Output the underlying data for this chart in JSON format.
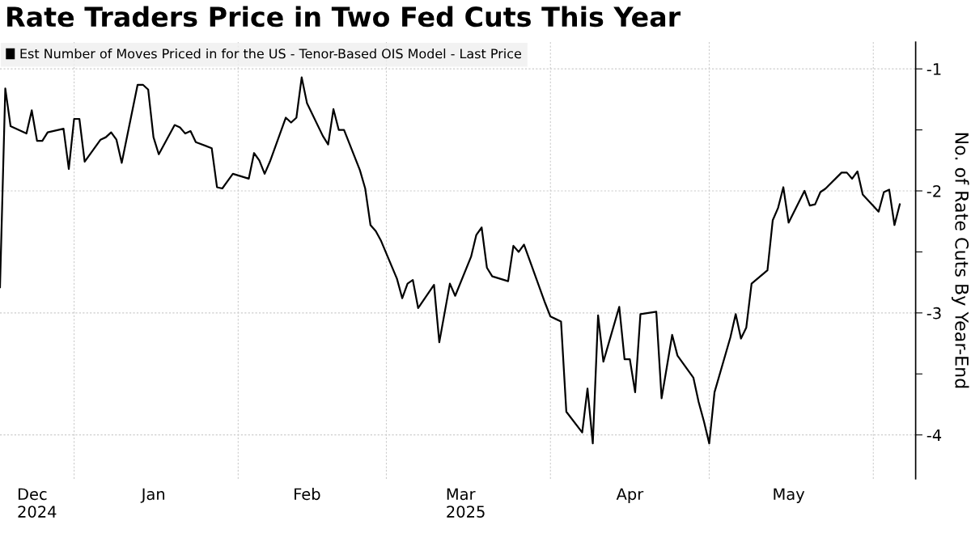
{
  "chart_data": {
    "type": "line",
    "title": "Rate Traders Price in Two Fed Cuts This Year",
    "ylabel": "No. of Rate Cuts By Year-End",
    "x": [
      "2024-12-18",
      "2024-12-19",
      "2024-12-20",
      "2024-12-23",
      "2024-12-24",
      "2024-12-25",
      "2024-12-26",
      "2024-12-27",
      "2024-12-30",
      "2024-12-31",
      "2025-01-01",
      "2025-01-02",
      "2025-01-03",
      "2025-01-06",
      "2025-01-07",
      "2025-01-08",
      "2025-01-09",
      "2025-01-10",
      "2025-01-13",
      "2025-01-14",
      "2025-01-15",
      "2025-01-16",
      "2025-01-17",
      "2025-01-20",
      "2025-01-21",
      "2025-01-22",
      "2025-01-23",
      "2025-01-24",
      "2025-01-27",
      "2025-01-28",
      "2025-01-29",
      "2025-01-30",
      "2025-01-31",
      "2025-02-03",
      "2025-02-04",
      "2025-02-05",
      "2025-02-06",
      "2025-02-07",
      "2025-02-10",
      "2025-02-11",
      "2025-02-12",
      "2025-02-13",
      "2025-02-14",
      "2025-02-17",
      "2025-02-18",
      "2025-02-19",
      "2025-02-20",
      "2025-02-21",
      "2025-02-24",
      "2025-02-25",
      "2025-02-26",
      "2025-02-27",
      "2025-02-28",
      "2025-03-03",
      "2025-03-04",
      "2025-03-05",
      "2025-03-06",
      "2025-03-07",
      "2025-03-10",
      "2025-03-11",
      "2025-03-12",
      "2025-03-13",
      "2025-03-14",
      "2025-03-17",
      "2025-03-18",
      "2025-03-19",
      "2025-03-20",
      "2025-03-21",
      "2025-03-24",
      "2025-03-25",
      "2025-03-26",
      "2025-03-27",
      "2025-03-28",
      "2025-03-31",
      "2025-04-01",
      "2025-04-02",
      "2025-04-03",
      "2025-04-04",
      "2025-04-07",
      "2025-04-08",
      "2025-04-09",
      "2025-04-10",
      "2025-04-11",
      "2025-04-14",
      "2025-04-15",
      "2025-04-16",
      "2025-04-17",
      "2025-04-18",
      "2025-04-21",
      "2025-04-22",
      "2025-04-23",
      "2025-04-24",
      "2025-04-25",
      "2025-04-28",
      "2025-04-29",
      "2025-04-30",
      "2025-05-01",
      "2025-05-02",
      "2025-05-05",
      "2025-05-06",
      "2025-05-07",
      "2025-05-08",
      "2025-05-09",
      "2025-05-12",
      "2025-05-13",
      "2025-05-14",
      "2025-05-15",
      "2025-05-16",
      "2025-05-19",
      "2025-05-20",
      "2025-05-21",
      "2025-05-22",
      "2025-05-23",
      "2025-05-26",
      "2025-05-27",
      "2025-05-28",
      "2025-05-29",
      "2025-05-30",
      "2025-06-02",
      "2025-06-03",
      "2025-06-04",
      "2025-06-05",
      "2025-06-06"
    ],
    "series": [
      {
        "name": "Est Number of Moves Priced in for the US - Tenor-Based OIS Model - Last Price",
        "color": "#000000",
        "values": [
          -2.79,
          -1.16,
          -1.47,
          -1.53,
          -1.34,
          -1.59,
          -1.59,
          -1.52,
          -1.49,
          -1.82,
          -1.41,
          -1.41,
          -1.76,
          -1.58,
          -1.56,
          -1.52,
          -1.58,
          -1.77,
          -1.13,
          -1.13,
          -1.17,
          -1.56,
          -1.7,
          -1.46,
          -1.48,
          -1.53,
          -1.51,
          -1.6,
          -1.65,
          -1.97,
          -1.98,
          -1.92,
          -1.86,
          -1.9,
          -1.69,
          -1.75,
          -1.86,
          -1.76,
          -1.4,
          -1.44,
          -1.4,
          -1.07,
          -1.28,
          -1.55,
          -1.62,
          -1.33,
          -1.5,
          -1.5,
          -1.83,
          -1.98,
          -2.28,
          -2.33,
          -2.41,
          -2.72,
          -2.88,
          -2.76,
          -2.73,
          -2.96,
          -2.77,
          -3.24,
          -3.0,
          -2.76,
          -2.86,
          -2.54,
          -2.36,
          -2.3,
          -2.63,
          -2.7,
          -2.74,
          -2.45,
          -2.5,
          -2.44,
          -2.56,
          -2.92,
          -3.03,
          -3.05,
          -3.07,
          -3.81,
          -3.98,
          -3.62,
          -4.07,
          -3.02,
          -3.4,
          -2.95,
          -3.38,
          -3.38,
          -3.65,
          -3.01,
          -2.99,
          -3.7,
          -3.44,
          -3.18,
          -3.35,
          -3.53,
          -3.73,
          -3.89,
          -4.07,
          -3.65,
          -3.2,
          -3.01,
          -3.21,
          -3.12,
          -2.76,
          -2.65,
          -2.24,
          -2.14,
          -1.97,
          -2.26,
          -2.0,
          -2.12,
          -2.11,
          -2.01,
          -1.98,
          -1.85,
          -1.85,
          -1.9,
          -1.84,
          -2.03,
          -2.17,
          -2.01,
          -1.99,
          -2.28,
          -2.11
        ]
      }
    ],
    "xlim": [
      "2024-12-18",
      "2025-06-09"
    ],
    "xticks": [
      {
        "value": "2024-12-25",
        "label": "Dec\n2024"
      },
      {
        "value": "2025-01-01",
        "label": null
      },
      {
        "value": "2025-01-16",
        "label": "Jan"
      },
      {
        "value": "2025-02-01",
        "label": null
      },
      {
        "value": "2025-02-14",
        "label": "Feb"
      },
      {
        "value": "2025-03-01",
        "label": null
      },
      {
        "value": "2025-03-16",
        "label": "Mar\n2025"
      },
      {
        "value": "2025-04-01",
        "label": null
      },
      {
        "value": "2025-04-16",
        "label": "Apr"
      },
      {
        "value": "2025-05-01",
        "label": null
      },
      {
        "value": "2025-05-16",
        "label": "May"
      },
      {
        "value": "2025-06-01",
        "label": null
      }
    ],
    "ylim": [
      -4.36,
      -0.78
    ],
    "yticks": [
      -1,
      {
        "value": -1.5,
        "label": null
      },
      -2,
      {
        "value": -2.5,
        "label": null
      },
      -3,
      {
        "value": -3.5,
        "label": null
      },
      -4
    ],
    "grid": true,
    "legend": "top left",
    "line_style": "solid",
    "marker": "none"
  }
}
